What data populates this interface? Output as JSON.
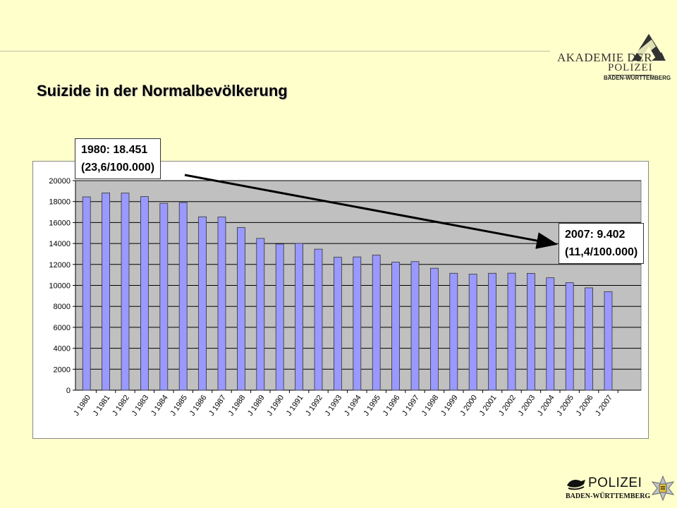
{
  "header": {
    "title": "Suizide in der Normalbevölkerung",
    "logo_line1": "AKADEMIE DER",
    "logo_line2": "POLIZEI",
    "logo_line3": "BADEN-WÜRTTEMBERG"
  },
  "annotations": {
    "start_line1": "1980: 18.451",
    "start_line2": "(23,6/100.000)",
    "end_line1": "2007: 9.402",
    "end_line2": "(11,4/100.000)"
  },
  "footer": {
    "logo_line1": "POLIZEI",
    "logo_line2": "BADEN-WÜRTTEMBERG"
  },
  "chart_data": {
    "type": "bar",
    "title": "",
    "xlabel": "",
    "ylabel": "",
    "ylim": [
      0,
      20000
    ],
    "yticks": [
      0,
      2000,
      4000,
      6000,
      8000,
      10000,
      12000,
      14000,
      16000,
      18000,
      20000
    ],
    "grid": true,
    "legend": "none",
    "categories": [
      "J 1980",
      "J 1981",
      "J 1982",
      "J 1983",
      "J 1984",
      "J 1985",
      "J 1986",
      "J 1987",
      "J 1988",
      "J 1989",
      "J 1990",
      "J 1991",
      "J 1992",
      "J 1993",
      "J 1994",
      "J 1995",
      "J 1996",
      "J 1997",
      "J 1998",
      "J 1999",
      "J 2000",
      "J 2001",
      "J 2002",
      "J 2003",
      "J 2004",
      "J 2005",
      "J 2006",
      "J 2007"
    ],
    "values": [
      18451,
      18825,
      18811,
      18482,
      17835,
      17910,
      16550,
      16530,
      15530,
      14490,
      13950,
      14010,
      13460,
      12690,
      12720,
      12890,
      12220,
      12270,
      11640,
      11160,
      11070,
      11160,
      11170,
      11150,
      10730,
      10260,
      9770,
      9402
    ],
    "bar_color": "#9999ff",
    "plot_background": "#c0c0c0"
  }
}
